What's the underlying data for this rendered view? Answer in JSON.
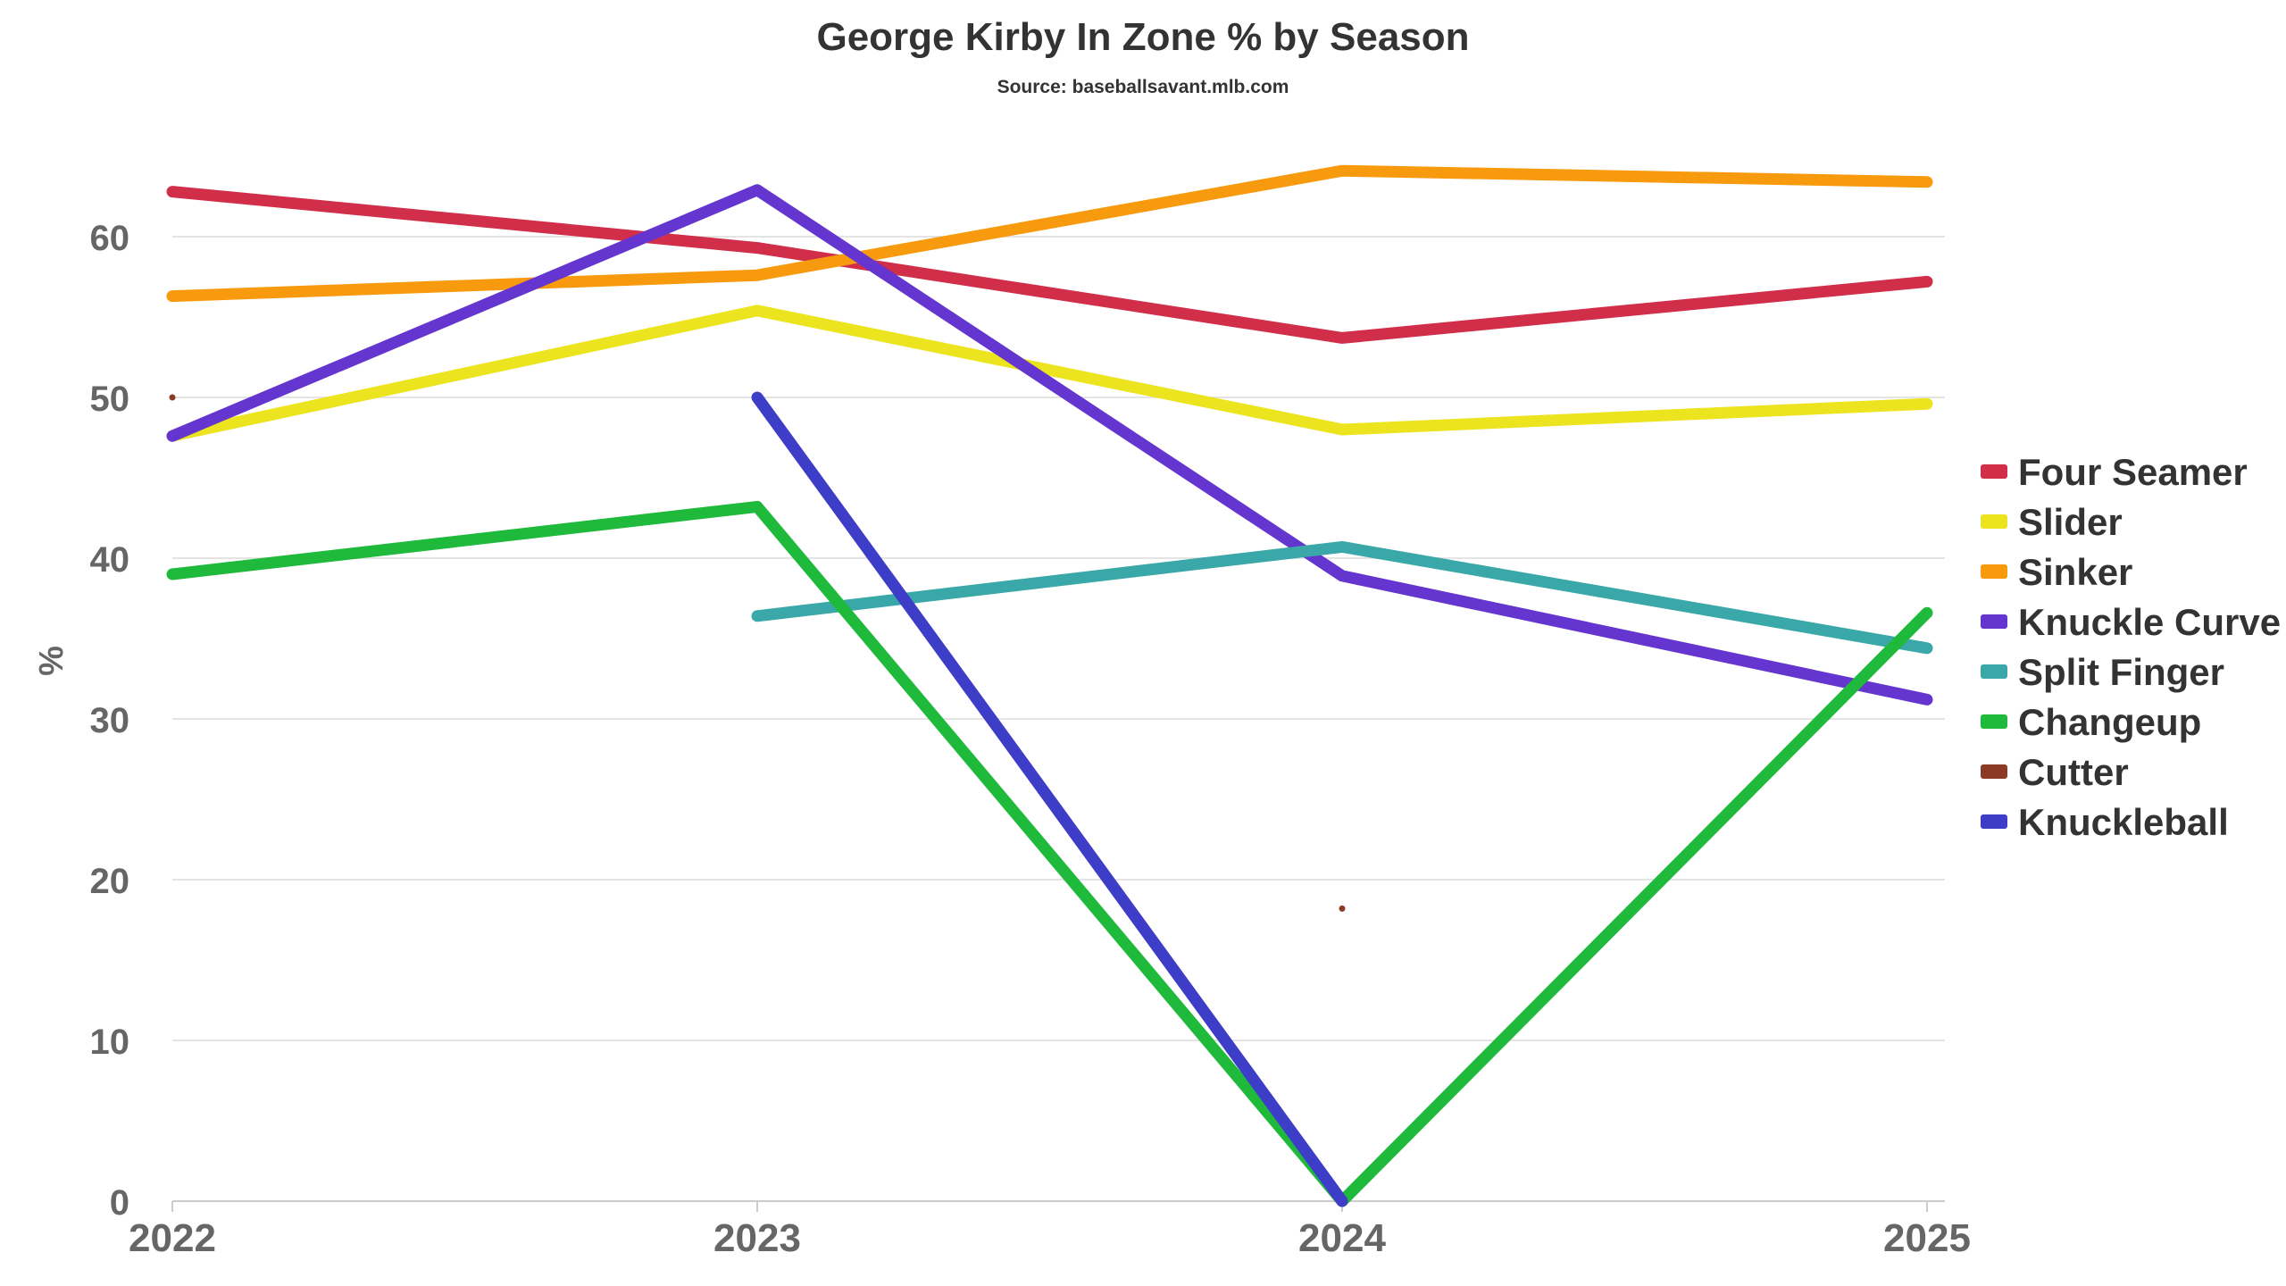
{
  "chart_data": {
    "type": "line",
    "title": "George Kirby In Zone % by Season",
    "subtitle": "Source: baseballsavant.mlb.com",
    "xlabel": "",
    "ylabel": "%",
    "categories": [
      "2022",
      "2023",
      "2024",
      "2025"
    ],
    "ylim": [
      0,
      65
    ],
    "yticks": [
      0,
      10,
      20,
      30,
      40,
      50,
      60
    ],
    "grid": true,
    "legend": "right",
    "series": [
      {
        "name": "Four Seamer",
        "color": "#d12e4a",
        "values": [
          62.8,
          59.3,
          53.7,
          57.2
        ]
      },
      {
        "name": "Slider",
        "color": "#ebe41f",
        "values": [
          47.6,
          55.4,
          48.0,
          49.6
        ]
      },
      {
        "name": "Sinker",
        "color": "#f79a0e",
        "values": [
          56.3,
          57.6,
          64.1,
          63.4
        ]
      },
      {
        "name": "Knuckle Curve",
        "color": "#6535cf",
        "values": [
          47.6,
          62.9,
          38.9,
          31.2
        ]
      },
      {
        "name": "Split Finger",
        "color": "#3aa8a8",
        "values": [
          null,
          36.4,
          40.7,
          34.4
        ]
      },
      {
        "name": "Changeup",
        "color": "#1fba3c",
        "values": [
          39.0,
          43.2,
          0.0,
          36.6
        ]
      },
      {
        "name": "Cutter",
        "color": "#8b3a25",
        "values": [
          50.0,
          null,
          18.2,
          null
        ]
      },
      {
        "name": "Knuckleball",
        "color": "#3d3dc8",
        "values": [
          null,
          50.0,
          0.0,
          null
        ]
      }
    ]
  }
}
